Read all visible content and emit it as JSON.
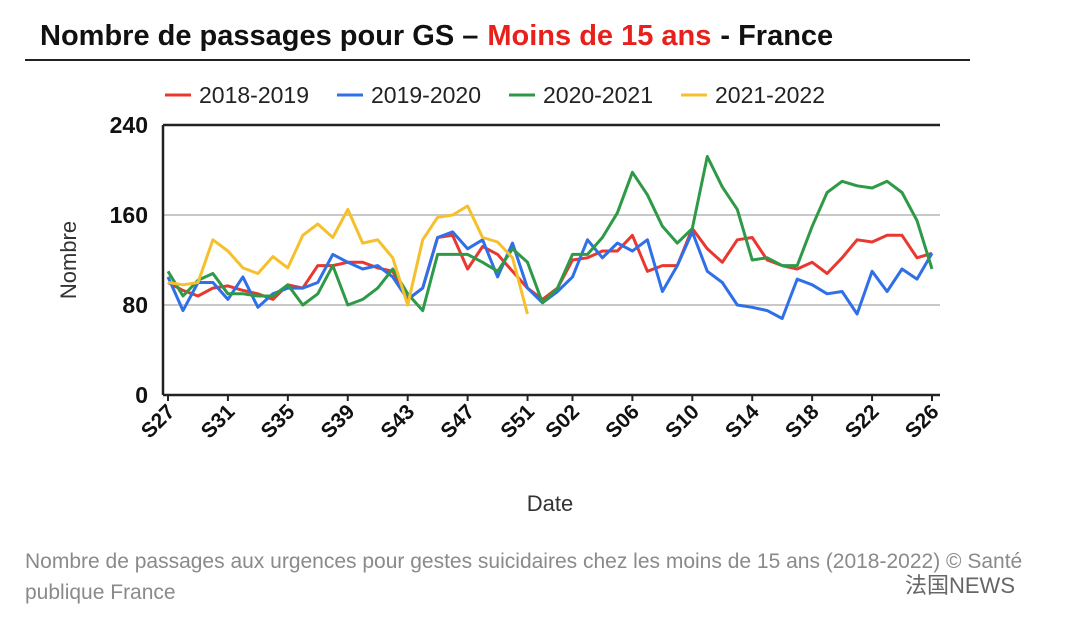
{
  "chart_data": {
    "type": "line",
    "title": "Nombre de passages pour GS –",
    "title_highlight": "Moins de 15 ans",
    "title_suffix": "- France",
    "xlabel": "Date",
    "ylabel": "Nombre",
    "categories": [
      "S27",
      null,
      null,
      null,
      "S31",
      null,
      null,
      null,
      "S35",
      null,
      null,
      null,
      "S39",
      null,
      null,
      null,
      "S43",
      null,
      null,
      null,
      "S47",
      null,
      null,
      null,
      "S51",
      null,
      null,
      "S02",
      null,
      null,
      null,
      "S06",
      null,
      null,
      null,
      "S10",
      null,
      null,
      null,
      "S14",
      null,
      null,
      null,
      "S18",
      null,
      null,
      null,
      "S22",
      null,
      null,
      null,
      "S26"
    ],
    "series": [
      {
        "name": "2018-2019",
        "color": "#e8382f",
        "values": [
          100,
          93,
          88,
          95,
          97,
          93,
          90,
          85,
          98,
          95,
          115,
          115,
          118,
          118,
          113,
          110,
          85,
          95,
          140,
          142,
          112,
          132,
          125,
          110,
          95,
          85,
          95,
          120,
          122,
          128,
          128,
          142,
          110,
          115,
          115,
          148,
          130,
          118,
          138,
          140,
          120,
          115,
          112,
          118,
          108,
          122,
          138,
          136,
          142,
          142,
          122,
          126
        ]
      },
      {
        "name": "2019-2020",
        "color": "#2f6fe8",
        "values": [
          105,
          75,
          100,
          100,
          85,
          105,
          78,
          90,
          95,
          95,
          100,
          125,
          118,
          112,
          115,
          105,
          85,
          95,
          140,
          145,
          130,
          138,
          105,
          135,
          95,
          82,
          92,
          105,
          138,
          122,
          135,
          128,
          138,
          92,
          115,
          145,
          110,
          100,
          80,
          78,
          75,
          68,
          103,
          98,
          90,
          92,
          72,
          110,
          92,
          112,
          103,
          126
        ]
      },
      {
        "name": "2020-2021",
        "color": "#2e9a47",
        "values": [
          110,
          88,
          102,
          108,
          90,
          90,
          88,
          88,
          98,
          80,
          90,
          115,
          80,
          85,
          95,
          112,
          90,
          75,
          125,
          125,
          125,
          118,
          110,
          130,
          118,
          82,
          95,
          125,
          125,
          140,
          162,
          198,
          178,
          150,
          135,
          148,
          212,
          185,
          165,
          120,
          122,
          115,
          115,
          150,
          180,
          190,
          186,
          184,
          190,
          180,
          155,
          112
        ]
      },
      {
        "name": "2021-2022",
        "color": "#f5c02c",
        "values": [
          100,
          98,
          100,
          138,
          128,
          113,
          108,
          123,
          113,
          142,
          152,
          140,
          165,
          135,
          138,
          122,
          80,
          138,
          158,
          160,
          168,
          140,
          136,
          122,
          72,
          null,
          null,
          null,
          null,
          null,
          null,
          null,
          null,
          null,
          null,
          null,
          null,
          null,
          null,
          null,
          null,
          null,
          null,
          null,
          null,
          null,
          null,
          null,
          null,
          null,
          null,
          null
        ]
      }
    ],
    "ylim": [
      0,
      240
    ],
    "yticks": [
      0,
      80,
      160,
      240
    ],
    "grid": true,
    "legend": "top"
  },
  "caption": "Nombre de passages aux urgences pour gestes suicidaires chez les moins de 15 ans (2018-2022) © Santé publique France",
  "watermark": "法国NEWS"
}
